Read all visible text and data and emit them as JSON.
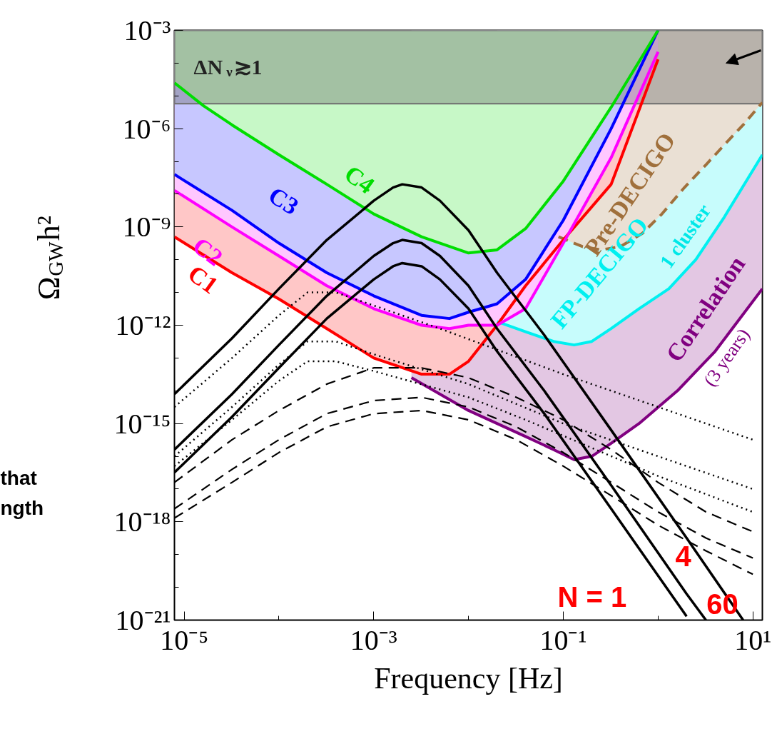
{
  "chart_data": {
    "type": "line",
    "xlabel": "Frequency [Hz]",
    "ylabel": "Ω$_{GW}$h²",
    "log": "xy",
    "grid": false,
    "xlim": [
      7.9e-06,
      12.6
    ],
    "ylim": [
      1e-21,
      0.001
    ],
    "xticks": [
      {
        "value": 1e-05,
        "label": "10⁻⁵"
      },
      {
        "value": 0.001,
        "label": "10⁻³"
      },
      {
        "value": 0.1,
        "label": "10⁻¹"
      },
      {
        "value": 10,
        "label": "10¹"
      }
    ],
    "yticks": [
      {
        "value": 1e-21,
        "label": "10⁻²¹"
      },
      {
        "value": 1e-18,
        "label": "10⁻¹⁸"
      },
      {
        "value": 1e-15,
        "label": "10⁻¹⁵"
      },
      {
        "value": 1e-12,
        "label": "10⁻¹²"
      },
      {
        "value": 1e-09,
        "label": "10⁻⁹"
      },
      {
        "value": 1e-06,
        "label": "10⁻⁶"
      },
      {
        "value": 0.001,
        "label": "10⁻³"
      }
    ],
    "bands": [
      {
        "axis": "y",
        "from": 5.8e-06,
        "to": 0.001,
        "label": "ΔN$_{ν}$≳1",
        "color": "#6e6e6e"
      }
    ],
    "series": [
      {
        "name": "Correlation",
        "color": "#800080",
        "line_style": "solid",
        "x": [
          0.0025,
          0.005,
          0.01,
          0.02,
          0.04,
          0.079,
          0.13,
          0.2,
          0.32,
          0.63,
          1.6,
          4,
          12.6
        ],
        "values": [
          2.5e-14,
          7.9e-15,
          2.5e-15,
          1e-15,
          4e-16,
          1.6e-16,
          7.9e-17,
          1e-16,
          2.5e-16,
          1e-15,
          1e-14,
          1.6e-13,
          1.3e-11
        ],
        "lower": [
          2.5e-14,
          7.9e-15,
          2.5e-15,
          1e-15,
          4e-16,
          1.6e-16,
          7.9e-17,
          1e-16,
          2.5e-16,
          1e-15,
          1e-14,
          1.6e-13,
          1.3e-11
        ],
        "upper": [
          0.001,
          0.001,
          0.001,
          0.001,
          0.001,
          0.001,
          0.001,
          0.001,
          0.001,
          0.001,
          0.001,
          0.001,
          0.001
        ]
      },
      {
        "name": "FP-DECIGO",
        "color": "#00f0f0",
        "line_style": "solid",
        "x": [
          0.02,
          0.04,
          0.079,
          0.13,
          0.2,
          0.32,
          0.63,
          1.3,
          2.5,
          5,
          12.6
        ],
        "values": [
          1.3e-12,
          6.3e-13,
          3.2e-13,
          2.5e-13,
          3.2e-13,
          7.9e-13,
          3.2e-12,
          1.3e-11,
          1e-10,
          2e-09,
          1.6e-07
        ],
        "lower": [
          1.3e-12,
          6.3e-13,
          3.2e-13,
          2.5e-13,
          3.2e-13,
          7.9e-13,
          3.2e-12,
          1.3e-11,
          1e-10,
          2e-09,
          1.6e-07
        ],
        "upper": [
          0.001,
          0.001,
          0.001,
          0.001,
          0.001,
          0.001,
          0.001,
          0.001,
          0.001,
          0.001,
          0.001
        ]
      },
      {
        "name": "Pre-DECIGO",
        "color": "#a0703c",
        "line_style": "dashed",
        "x": [
          0.089,
          0.16,
          0.25,
          0.4,
          0.68,
          1.1,
          1.9,
          3.2,
          5,
          7.9,
          12.6
        ],
        "values": [
          5e-10,
          2.5e-10,
          2e-10,
          2.5e-10,
          6.3e-10,
          2.5e-09,
          1.6e-08,
          7.9e-08,
          3.2e-07,
          1.3e-06,
          6.3e-06
        ],
        "lower": [
          5e-10,
          2.5e-10,
          2e-10,
          2.5e-10,
          6.3e-10,
          2.5e-09,
          1.6e-08,
          7.9e-08,
          3.2e-07,
          1.3e-06,
          6.3e-06
        ],
        "upper": [
          0.001,
          0.001,
          0.001,
          0.001,
          0.001,
          0.001,
          0.001,
          0.001,
          0.001,
          0.001,
          0.001
        ]
      },
      {
        "name": "C1",
        "color": "#ff0000",
        "line_style": "solid",
        "x": [
          7.9e-06,
          3.2e-05,
          0.0001,
          0.00032,
          0.001,
          0.0032,
          0.0063,
          0.01,
          0.02,
          0.04,
          0.1,
          0.32,
          1
        ],
        "values": [
          5e-10,
          4e-11,
          6.3e-12,
          7.9e-13,
          1e-13,
          3.2e-14,
          3.2e-14,
          7.9e-14,
          1e-12,
          1.6e-11,
          4e-10,
          2e-08,
          0.00013
        ],
        "lower": [
          5e-10,
          4e-11,
          6.3e-12,
          7.9e-13,
          1e-13,
          3.2e-14,
          3.2e-14,
          7.9e-14,
          1e-12,
          1.6e-11,
          4e-10,
          2e-08,
          0.00013
        ],
        "upper": [
          0.001,
          0.001,
          0.001,
          0.001,
          0.001,
          0.001,
          0.001,
          0.001,
          0.001,
          0.001,
          0.001,
          0.001,
          0.001
        ]
      },
      {
        "name": "C2",
        "color": "#ff00ff",
        "line_style": "solid",
        "x": [
          7.9e-06,
          3.2e-05,
          0.0001,
          0.00032,
          0.001,
          0.0032,
          0.0063,
          0.01,
          0.02,
          0.04,
          0.1,
          0.32,
          1
        ],
        "values": [
          1.3e-08,
          1e-09,
          1.3e-10,
          1.6e-11,
          3.2e-12,
          1e-12,
          7.9e-13,
          1e-12,
          1e-12,
          3.2e-12,
          3.2e-10,
          1.3e-07,
          0.00022
        ],
        "lower": [
          1.3e-08,
          1e-09,
          1.3e-10,
          1.6e-11,
          3.2e-12,
          1e-12,
          7.9e-13,
          1e-12,
          1e-12,
          3.2e-12,
          3.2e-10,
          1.3e-07,
          0.00022
        ],
        "upper": [
          0.001,
          0.001,
          0.001,
          0.001,
          0.001,
          0.001,
          0.001,
          0.001,
          0.001,
          0.001,
          0.001,
          0.001,
          0.001
        ]
      },
      {
        "name": "C3",
        "color": "#0000ff",
        "line_style": "solid",
        "x": [
          7.9e-06,
          3.2e-05,
          0.0001,
          0.00032,
          0.001,
          0.0032,
          0.0063,
          0.01,
          0.02,
          0.04,
          0.1,
          0.32,
          1
        ],
        "values": [
          4e-08,
          3.2e-09,
          3.2e-10,
          4e-11,
          7.9e-12,
          2e-12,
          1.6e-12,
          2.5e-12,
          4.5e-12,
          2.5e-11,
          1.6e-09,
          1e-06,
          0.001
        ],
        "lower": [
          4e-08,
          3.2e-09,
          3.2e-10,
          4e-11,
          7.9e-12,
          2e-12,
          1.6e-12,
          2.5e-12,
          4.5e-12,
          2.5e-11,
          1.6e-09,
          1e-06,
          0.001
        ],
        "upper": [
          0.001,
          0.001,
          0.001,
          0.001,
          0.001,
          0.001,
          0.001,
          0.001,
          0.001,
          0.001,
          0.001,
          0.001,
          0.001
        ]
      },
      {
        "name": "C4",
        "color": "#00dd00",
        "line_style": "solid",
        "x": [
          7.9e-06,
          1.6e-05,
          3.2e-05,
          0.0001,
          0.00032,
          0.001,
          0.0032,
          0.01,
          0.02,
          0.04,
          0.1,
          0.32,
          1
        ],
        "values": [
          2.5e-05,
          5e-06,
          1.3e-06,
          1.6e-07,
          2e-08,
          2.5e-09,
          5e-10,
          1.6e-10,
          2e-10,
          8.9e-10,
          2.5e-08,
          4.5e-06,
          0.001
        ],
        "lower": [
          2.5e-05,
          5e-06,
          1.3e-06,
          1.6e-07,
          2e-08,
          2.5e-09,
          5e-10,
          1.6e-10,
          2e-10,
          8.9e-10,
          2.5e-08,
          4.5e-06,
          0.001
        ],
        "upper": [
          0.001,
          0.001,
          0.001,
          0.001,
          0.001,
          0.001,
          0.001,
          0.001,
          0.001,
          0.001,
          0.001,
          0.001,
          0.001
        ]
      },
      {
        "color": "#000000",
        "line_style": "solid",
        "x": [
          7.9e-06,
          3.2e-05,
          0.0001,
          0.00032,
          0.001,
          0.0016,
          0.002,
          0.0032,
          0.005,
          0.01,
          0.02,
          0.063,
          0.32,
          2
        ],
        "values": [
          3.2e-17,
          1.6e-15,
          5e-14,
          1.6e-12,
          2.5e-11,
          6.3e-11,
          7.9e-11,
          6.3e-11,
          2.5e-11,
          3.2e-12,
          1.6e-13,
          2e-15,
          2.5e-18,
          1.3e-21
        ]
      },
      {
        "color": "#000000",
        "line_style": "solid",
        "x": [
          7.9e-06,
          3.2e-05,
          0.0001,
          0.00032,
          0.001,
          0.0016,
          0.002,
          0.0032,
          0.005,
          0.01,
          0.02,
          0.063,
          0.32,
          2,
          3.2
        ],
        "values": [
          1.6e-16,
          7.9e-15,
          2.5e-13,
          7.9e-12,
          1.3e-10,
          3.2e-10,
          4e-10,
          3.2e-10,
          1.3e-10,
          1.6e-11,
          7.9e-13,
          1e-14,
          1.3e-17,
          6.3e-21,
          1e-21
        ]
      },
      {
        "color": "#000000",
        "line_style": "solid",
        "x": [
          7.9e-06,
          3.2e-05,
          0.0001,
          0.00032,
          0.001,
          0.0016,
          0.002,
          0.0032,
          0.005,
          0.01,
          0.02,
          0.063,
          0.32,
          2,
          7.9
        ],
        "values": [
          7.9e-15,
          4e-13,
          1.3e-11,
          4e-10,
          6.3e-09,
          1.6e-08,
          2e-08,
          1.6e-08,
          6.3e-09,
          7.9e-10,
          4e-11,
          5e-13,
          6.3e-16,
          3.2e-19,
          1e-21
        ]
      },
      {
        "color": "#000000",
        "line_style": "dotted",
        "x": [
          7.9e-06,
          3.2e-05,
          0.0001,
          0.0002,
          0.0004,
          0.001,
          0.005,
          0.1,
          1,
          10
        ],
        "values": [
          3.2e-15,
          1e-13,
          2e-12,
          1e-11,
          1e-11,
          4e-12,
          7.9e-13,
          3.2e-14,
          3.2e-15,
          3.2e-16
        ]
      },
      {
        "color": "#000000",
        "line_style": "dotted",
        "x": [
          7.9e-06,
          3.2e-05,
          0.0001,
          0.0002,
          0.0004,
          0.001,
          0.01,
          0.1,
          1,
          10
        ],
        "values": [
          1e-16,
          3.2e-15,
          6.3e-14,
          3.2e-13,
          3.2e-13,
          1.3e-13,
          1.6e-14,
          1e-15,
          1e-16,
          1e-17
        ]
      },
      {
        "color": "#000000",
        "line_style": "dotted",
        "x": [
          7.9e-06,
          3.2e-05,
          0.0001,
          0.0002,
          0.0004,
          0.001,
          0.01,
          0.04,
          1,
          10
        ],
        "values": [
          5e-17,
          1.3e-15,
          2e-14,
          7.9e-14,
          7.9e-14,
          4e-14,
          6.3e-15,
          1.3e-15,
          2.5e-17,
          2e-18
        ]
      },
      {
        "color": "#000000",
        "line_style": "dashed",
        "x": [
          7.9e-06,
          3.2e-05,
          0.0001,
          0.00032,
          0.001,
          0.0032,
          0.01,
          0.032,
          0.1,
          0.32,
          1,
          3.2,
          10
        ],
        "values": [
          1.6e-17,
          3.2e-16,
          2.5e-15,
          1.6e-14,
          5e-14,
          5e-14,
          2.5e-14,
          6.3e-15,
          1.3e-15,
          1.6e-16,
          1.6e-17,
          2e-18,
          5e-19
        ]
      },
      {
        "color": "#000000",
        "line_style": "dashed",
        "x": [
          7.9e-06,
          3.2e-05,
          0.0001,
          0.00032,
          0.001,
          0.0032,
          0.01,
          0.032,
          0.1,
          0.32,
          1,
          3.2,
          10
        ],
        "values": [
          2.5e-18,
          4e-17,
          3.2e-16,
          2e-15,
          5e-15,
          6.3e-15,
          3.2e-15,
          7.9e-16,
          1.3e-16,
          1.6e-17,
          2e-18,
          3.2e-19,
          7.9e-20
        ]
      },
      {
        "color": "#000000",
        "line_style": "dashed",
        "x": [
          7.9e-06,
          3.2e-05,
          0.0001,
          0.00032,
          0.001,
          0.0032,
          0.01,
          0.032,
          0.1,
          0.32,
          1,
          3.2,
          10
        ],
        "values": [
          1.3e-18,
          1.6e-17,
          1.3e-16,
          7.9e-16,
          2e-15,
          2.5e-15,
          1.3e-15,
          3.2e-16,
          5e-17,
          6.3e-18,
          7.9e-19,
          1.3e-19,
          2.5e-20
        ]
      }
    ],
    "annotations": [
      "1 cluster",
      "(3 years)",
      "N  = 1",
      "4",
      "60",
      "that",
      "ngth"
    ]
  }
}
